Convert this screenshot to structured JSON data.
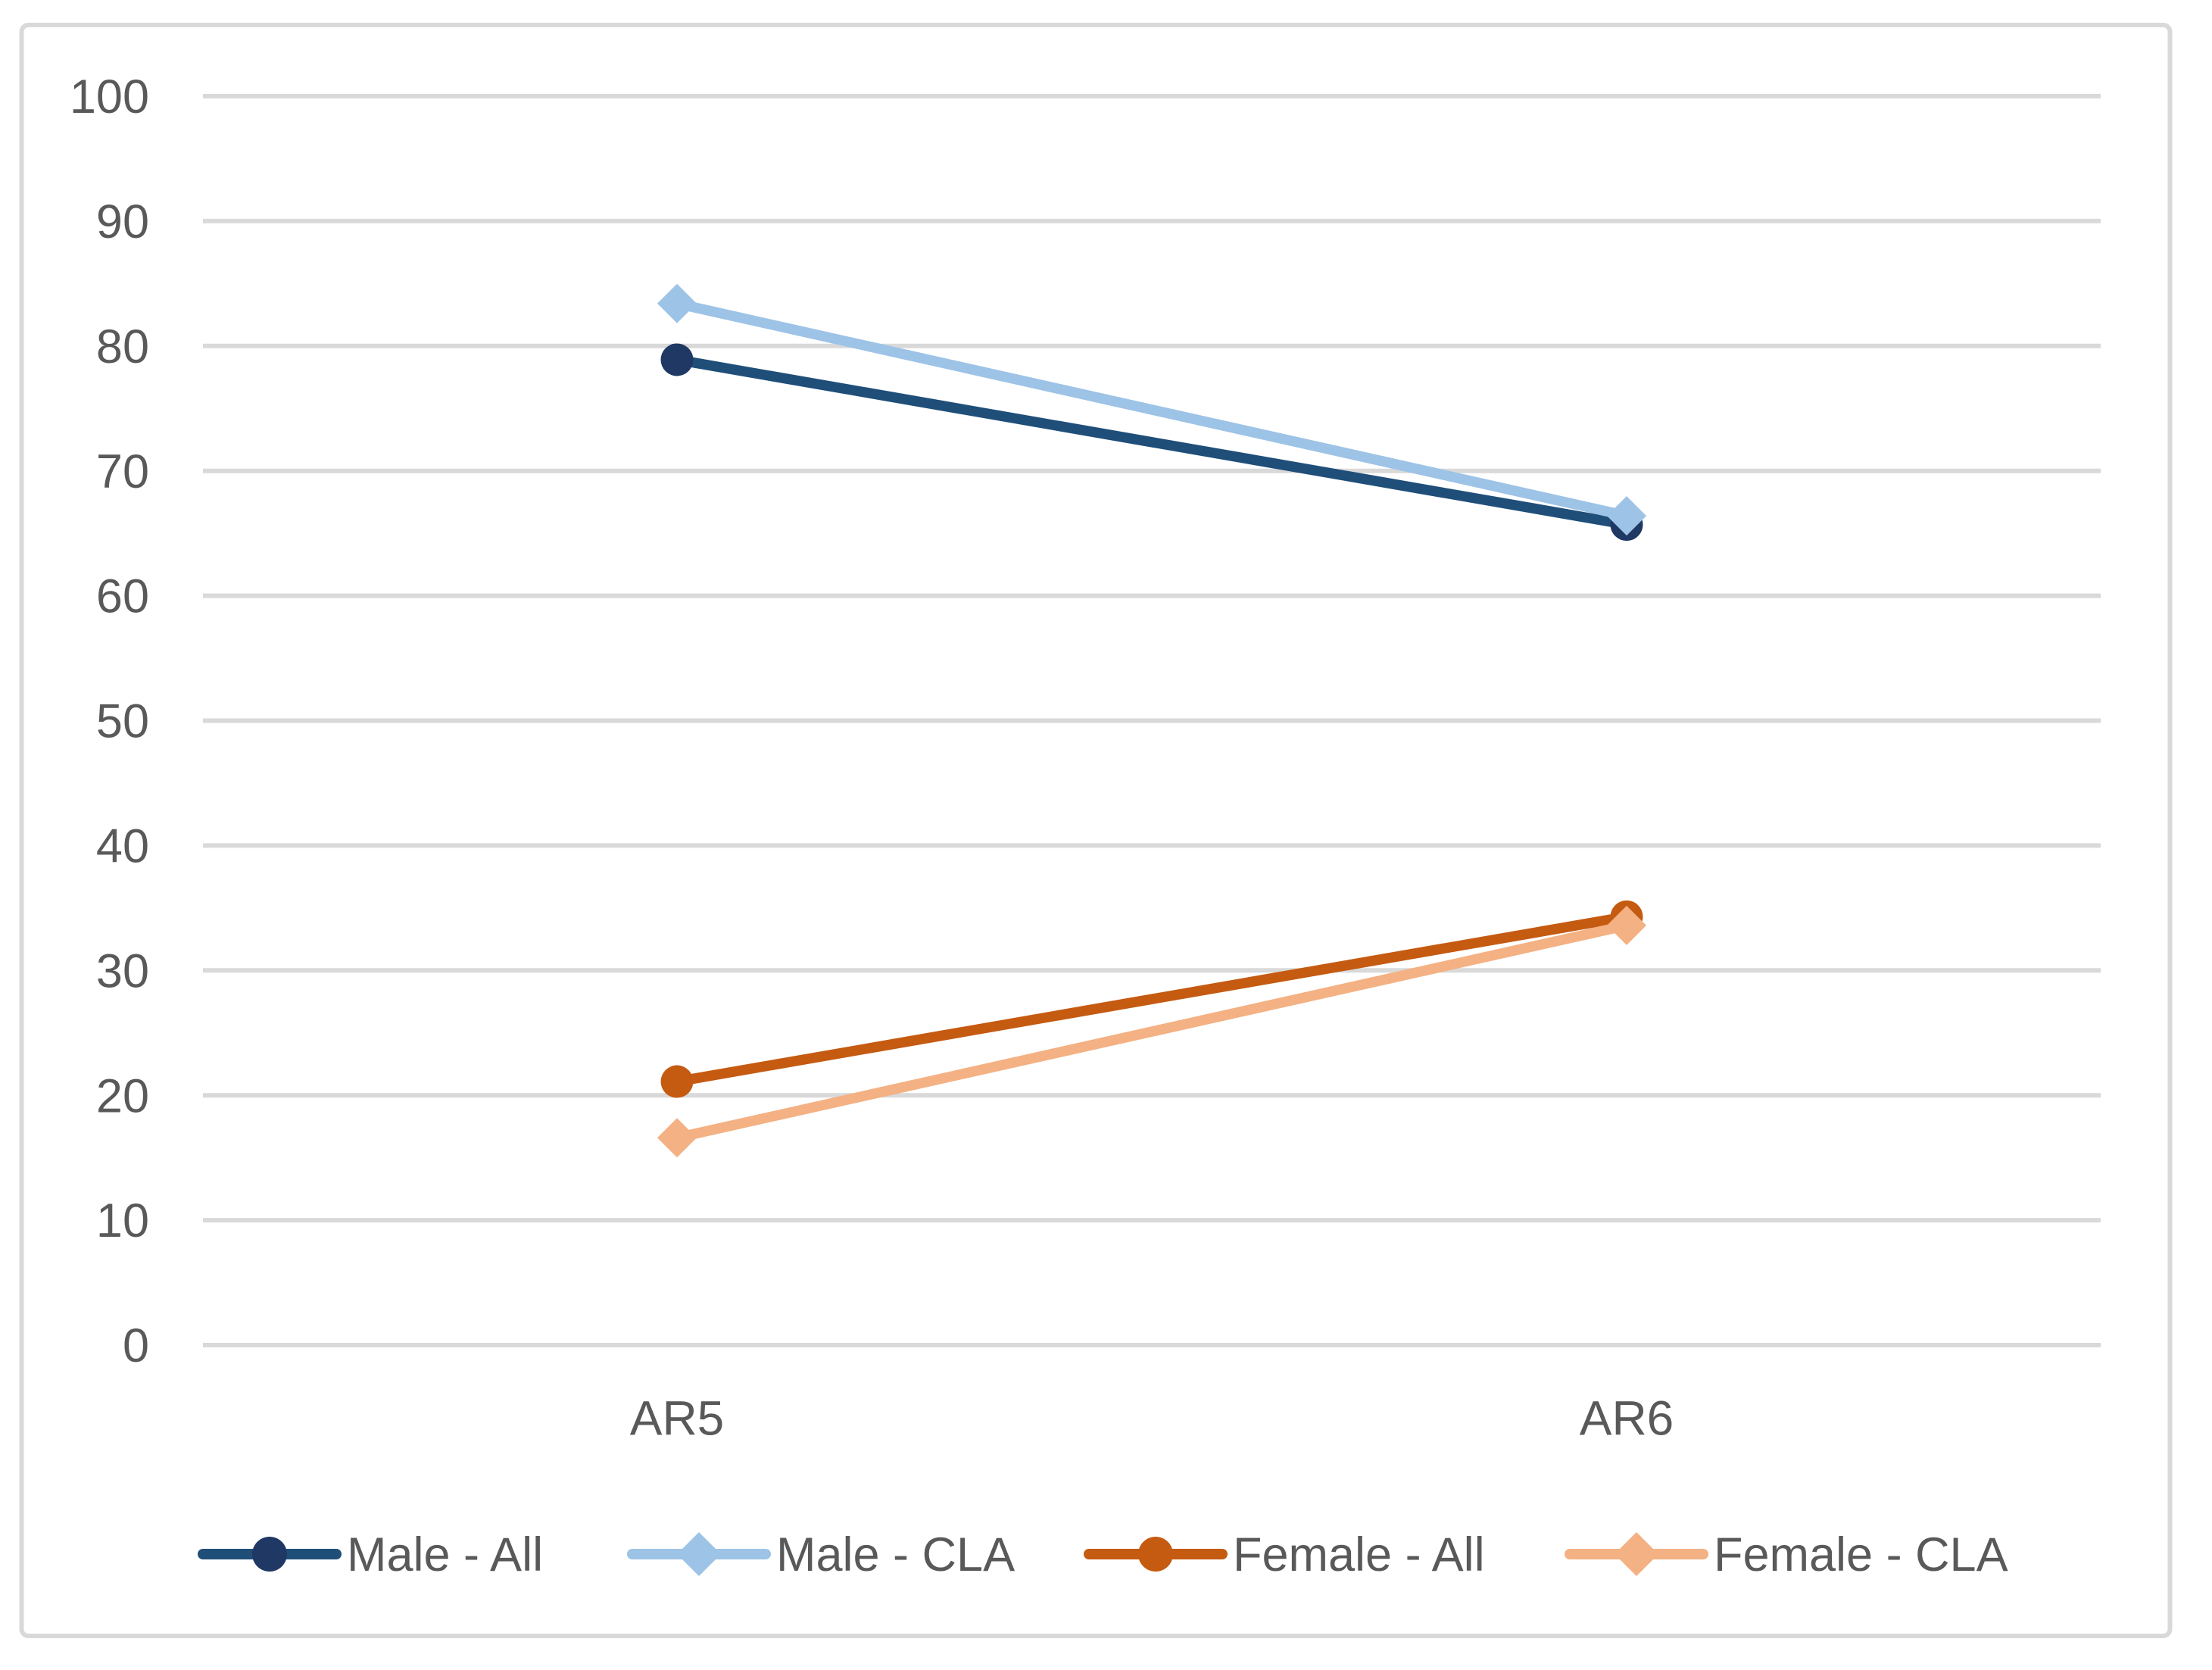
{
  "chart_data": {
    "type": "line",
    "title": "",
    "categories": [
      "AR5",
      "AR6"
    ],
    "series": [
      {
        "name": "Male - All",
        "values": [
          78.9,
          65.7
        ],
        "line_color": "#1F4E79",
        "marker_color": "#1F3864",
        "marker": "circle"
      },
      {
        "name": "Male - CLA",
        "values": [
          83.4,
          66.4
        ],
        "line_color": "#9DC3E6",
        "marker_color": "#9DC3E6",
        "marker": "diamond"
      },
      {
        "name": "Female - All",
        "values": [
          21.1,
          34.3
        ],
        "line_color": "#C55A11",
        "marker_color": "#C55A11",
        "marker": "circle"
      },
      {
        "name": "Female - CLA",
        "values": [
          16.6,
          33.6
        ],
        "line_color": "#F4B183",
        "marker_color": "#F4B183",
        "marker": "diamond"
      }
    ],
    "xlabel": "",
    "ylabel": "",
    "ylim": [
      0,
      100
    ],
    "y_ticks": [
      0,
      10,
      20,
      30,
      40,
      50,
      60,
      70,
      80,
      90,
      100
    ],
    "grid": true,
    "legend_position": "bottom",
    "colors": {
      "background": "#FFFFFF",
      "gridline": "#D9D9D9",
      "border": "#D9D9D9",
      "text": "#595959"
    }
  }
}
